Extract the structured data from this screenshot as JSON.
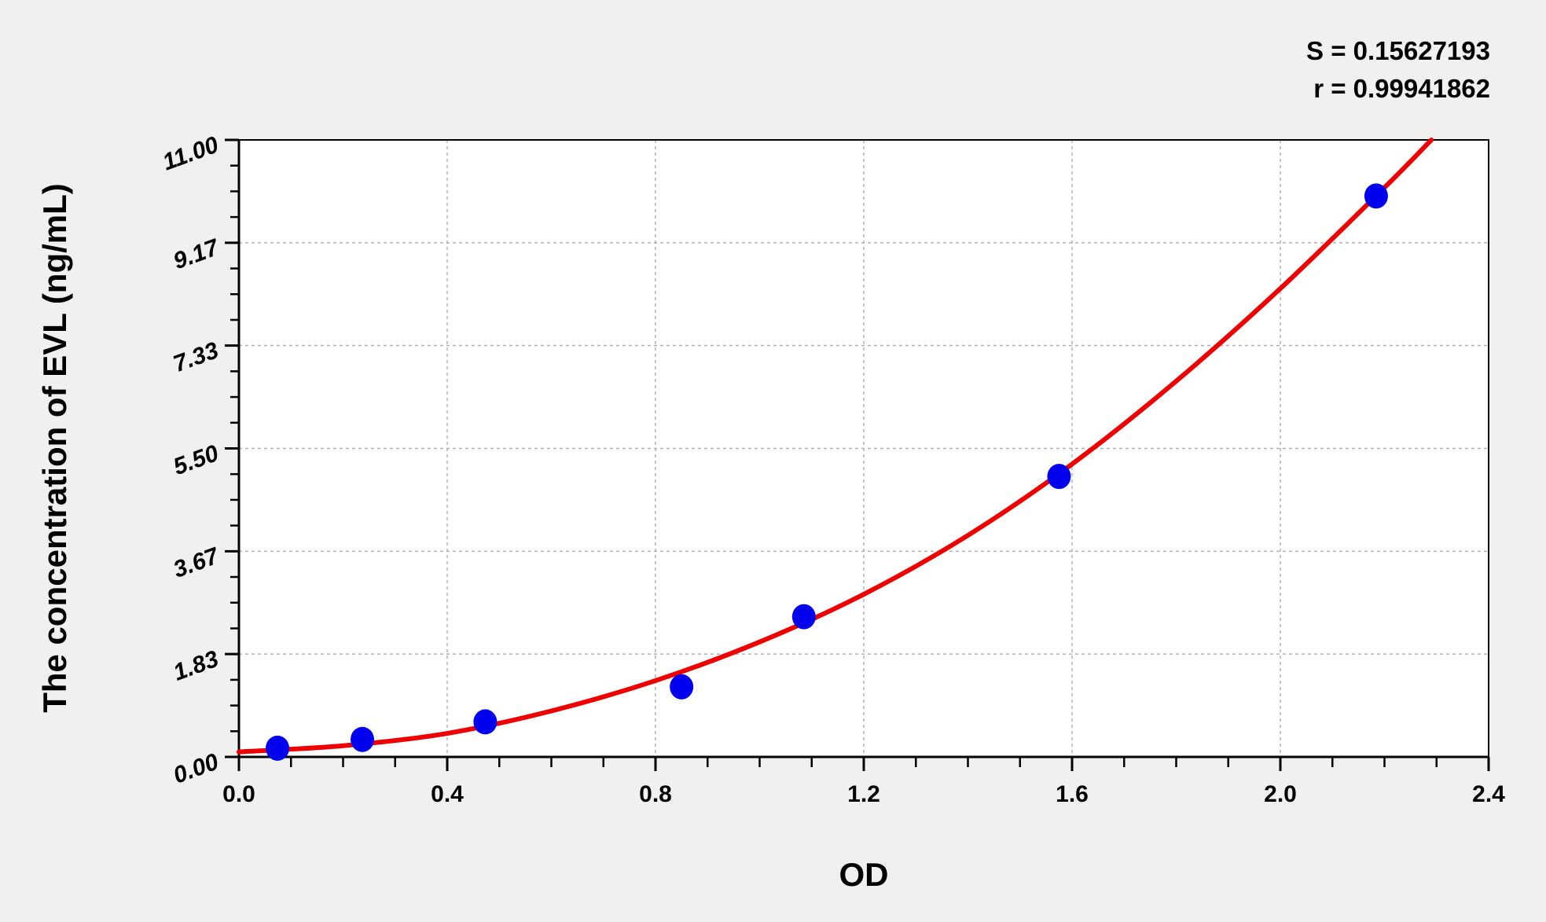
{
  "chart_data": {
    "type": "scatter",
    "title": "",
    "xlabel": "OD",
    "ylabel": "The concentration of EVL (ng/mL)",
    "xlim": [
      0,
      2.4
    ],
    "ylim": [
      0,
      11
    ],
    "xticks": [
      "0.0",
      "0.4",
      "0.8",
      "1.2",
      "1.6",
      "2.0",
      "2.4"
    ],
    "yticks": [
      "0.00",
      "1.83",
      "3.67",
      "5.50",
      "7.33",
      "9.17",
      "11.00"
    ],
    "grid": true,
    "stats": [
      "S = 0.15627193",
      "r = 0.99941862"
    ],
    "points": {
      "x": [
        0.074,
        0.237,
        0.473,
        0.85,
        1.085,
        1.575,
        2.184
      ],
      "y": [
        0.156,
        0.312,
        0.625,
        1.25,
        2.5,
        5.0,
        10.0
      ],
      "color": "#0000ee"
    },
    "fit_curve": {
      "x": [
        0.0,
        0.2,
        0.4,
        0.6,
        0.8,
        1.0,
        1.2,
        1.4,
        1.6,
        1.8,
        2.0,
        2.2,
        2.29
      ],
      "y": [
        0.09,
        0.2,
        0.42,
        0.82,
        1.36,
        2.05,
        2.9,
        3.95,
        5.22,
        6.7,
        8.35,
        10.15,
        11.0
      ],
      "color": "#ee0000"
    }
  }
}
